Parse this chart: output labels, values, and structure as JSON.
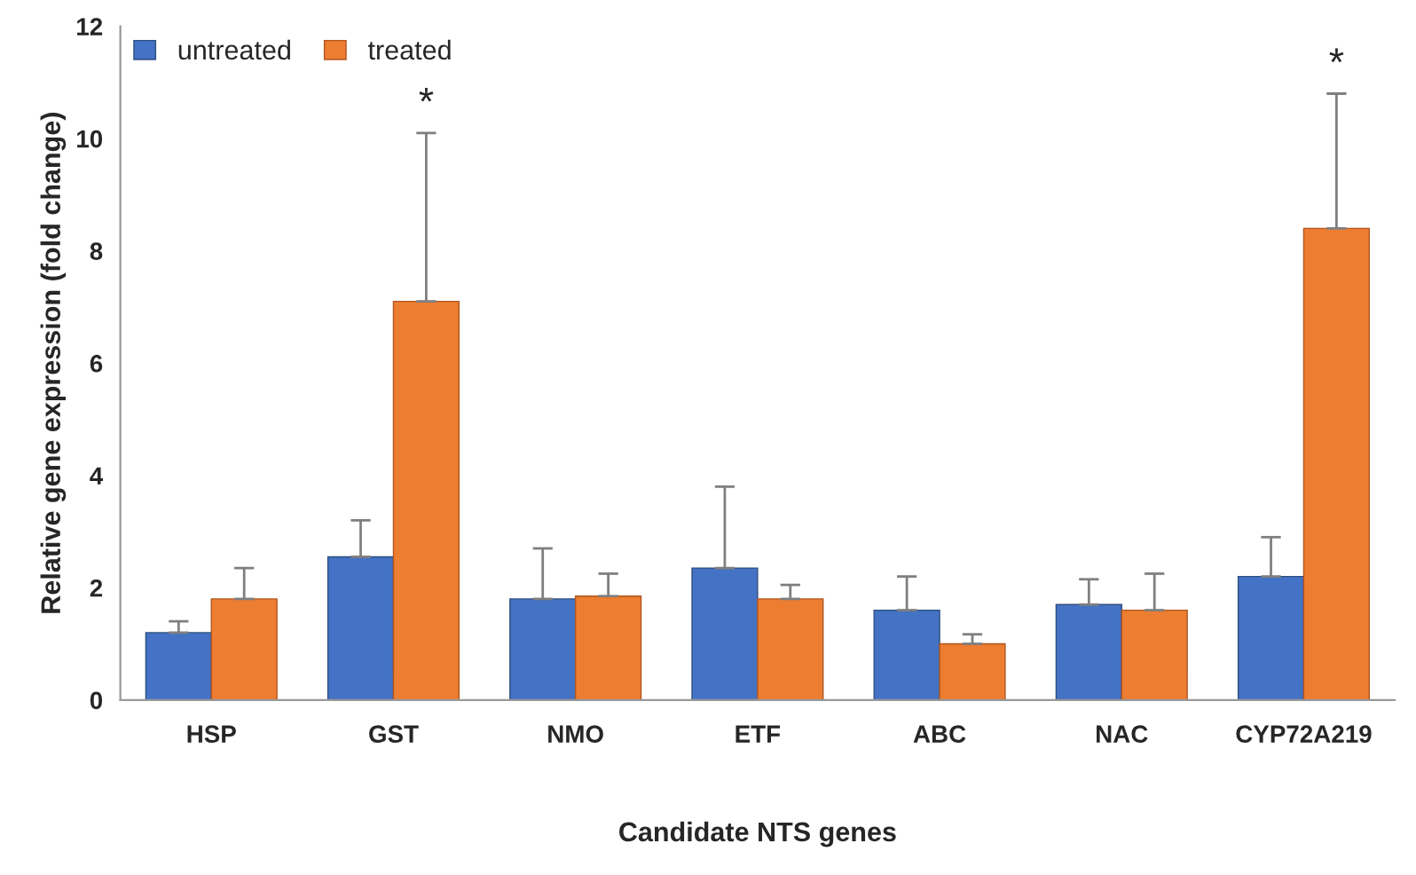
{
  "chart_data": {
    "type": "bar",
    "xlabel": "Candidate NTS genes",
    "ylabel": "Relative gene expression (fold change)",
    "categories": [
      "HSP",
      "GST",
      "NMO",
      "ETF",
      "ABC",
      "NAC",
      "CYP72A219"
    ],
    "series": [
      {
        "name": "untreated",
        "color": "#4472c4",
        "values": [
          1.2,
          2.55,
          1.8,
          2.35,
          1.6,
          1.7,
          2.2
        ],
        "errors": [
          [
            1.2,
            1.4
          ],
          [
            2.55,
            3.2
          ],
          [
            1.8,
            2.7
          ],
          [
            2.35,
            3.8
          ],
          [
            1.6,
            2.2
          ],
          [
            1.7,
            2.15
          ],
          [
            2.2,
            2.9
          ]
        ]
      },
      {
        "name": "treated",
        "color": "#ed7d31",
        "values": [
          1.8,
          7.1,
          1.85,
          1.8,
          1.0,
          1.6,
          8.4
        ],
        "errors": [
          [
            1.8,
            2.35
          ],
          [
            7.1,
            10.1
          ],
          [
            1.85,
            2.25
          ],
          [
            1.8,
            2.05
          ],
          [
            1.0,
            1.17
          ],
          [
            1.6,
            2.25
          ],
          [
            8.4,
            10.8
          ]
        ]
      }
    ],
    "annotations": [
      "*",
      "*"
    ],
    "ylim": [
      0,
      12
    ],
    "yticks": [
      0,
      2,
      4,
      6,
      8,
      10,
      12
    ],
    "grid": false,
    "legend": "top left"
  }
}
